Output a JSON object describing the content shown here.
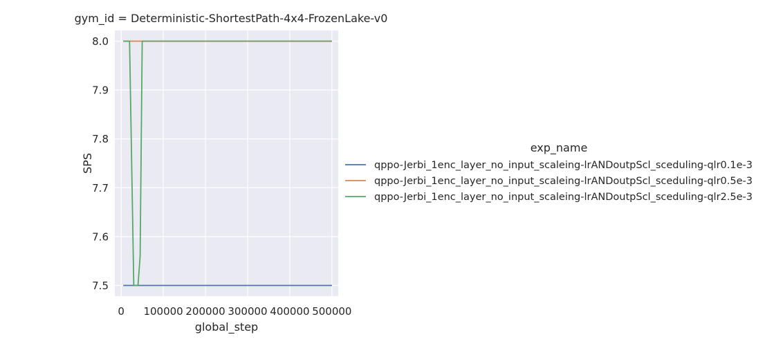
{
  "chart_data": {
    "type": "line",
    "title": "gym_id = Deterministic-ShortestPath-4x4-FrozenLake-v0",
    "xlabel": "global_step",
    "ylabel": "SPS",
    "xlim": [
      -15000,
      515000
    ],
    "ylim": [
      7.478,
      8.022
    ],
    "xticks": [
      0,
      100000,
      200000,
      300000,
      400000,
      500000
    ],
    "xtick_labels": [
      "0",
      "100000",
      "200000",
      "300000",
      "400000",
      "500000"
    ],
    "yticks": [
      7.5,
      7.6,
      7.7,
      7.8,
      7.9,
      8.0
    ],
    "ytick_labels": [
      "7.5",
      "7.6",
      "7.7",
      "7.8",
      "7.9",
      "8.0"
    ],
    "grid": true,
    "legend": {
      "title": "exp_name",
      "placement": "right outside"
    },
    "series": [
      {
        "name": "qppo-Jerbi_1enc_layer_no_input_scaleing-lrANDoutpScl_sceduling-qlr0.1e-3",
        "color": "#4c72b0",
        "x": [
          5000,
          500000
        ],
        "y": [
          7.5,
          7.5
        ]
      },
      {
        "name": "qppo-Jerbi_1enc_layer_no_input_scaleing-lrANDoutpScl_sceduling-qlr0.5e-3",
        "color": "#dd8452",
        "x": [
          5000,
          500000
        ],
        "y": [
          8.0,
          8.0
        ]
      },
      {
        "name": "qppo-Jerbi_1enc_layer_no_input_scaleing-lrANDoutpScl_sceduling-qlr2.5e-3",
        "color": "#55a868",
        "x": [
          5000,
          20000,
          30000,
          40000,
          45000,
          50000,
          60000,
          100000,
          500000
        ],
        "y": [
          8.0,
          8.0,
          7.5,
          7.5,
          7.56,
          8.0,
          8.0,
          8.0,
          8.0
        ]
      }
    ]
  }
}
